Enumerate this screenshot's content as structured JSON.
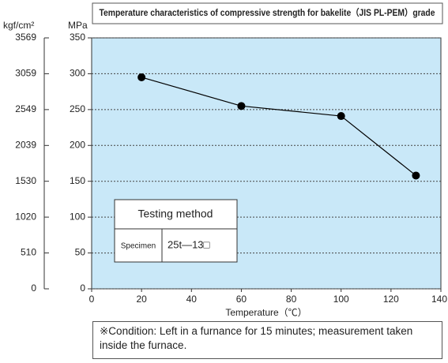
{
  "chart_data": {
    "type": "line",
    "title": "Temperature characteristics of compressive strength for bakelite（JIS PL-PEM）grade",
    "x_label": "Temperature（℃）",
    "y_label": "MPa",
    "y2_label": "kgf/cm²",
    "x": [
      20,
      60,
      100,
      130
    ],
    "series": [
      {
        "name": "Compressive strength",
        "color": "#000000",
        "values": [
          295,
          255,
          241,
          158
        ]
      }
    ],
    "xlim": [
      0,
      140
    ],
    "xticks": [
      0,
      20,
      40,
      60,
      80,
      100,
      120,
      140
    ],
    "ylim": [
      0,
      350
    ],
    "yticks": [
      0,
      50,
      100,
      150,
      200,
      250,
      300,
      350
    ],
    "y2lim": [
      0,
      3569
    ],
    "y2ticks": [
      0,
      510,
      1020,
      1530,
      2039,
      2549,
      3059,
      3569
    ],
    "grid": true,
    "background": "#c9e8f8",
    "inset_table": {
      "header": "Testing method",
      "row": [
        "Specimen",
        "25t—13□"
      ]
    },
    "note": "※Condition: Left in a furnance for 15 minutes; measurement taken inside the furnace."
  }
}
